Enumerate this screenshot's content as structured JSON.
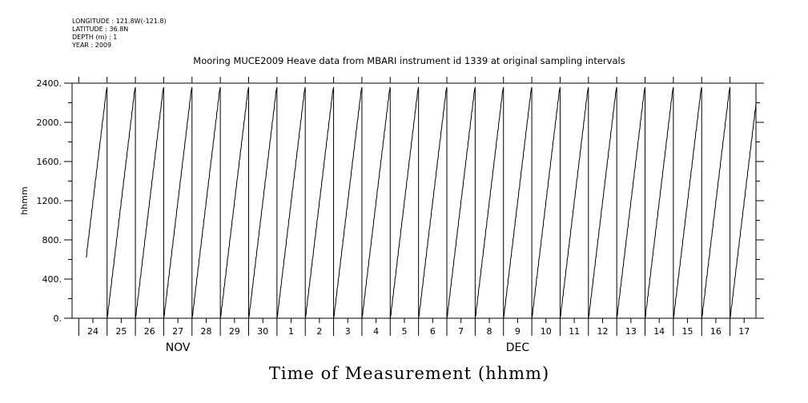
{
  "metadata": {
    "longitude": "LONGITUDE : 121.8W(-121.8)",
    "latitude": "LATITUDE : 36.8N",
    "depth": "DEPTH (m) : 1",
    "year": "YEAR : 2009"
  },
  "chart_data": {
    "type": "line",
    "title": "Mooring MUCE2009 Heave data from MBARI instrument id 1339 at original sampling intervals",
    "xlabel": "Time of Measurement (hhmm)",
    "ylabel": "hhmm",
    "ylim": [
      0,
      2400
    ],
    "yticks": [
      {
        "value": 0,
        "label": "0."
      },
      {
        "value": 400,
        "label": "400."
      },
      {
        "value": 800,
        "label": "800."
      },
      {
        "value": 1200,
        "label": "1200."
      },
      {
        "value": 1600,
        "label": "1600."
      },
      {
        "value": 2000,
        "label": "2000."
      },
      {
        "value": 2400,
        "label": "2400."
      }
    ],
    "xlim": [
      "2009-11-23T18:20",
      "2009-12-17T22:00"
    ],
    "x_day_labels": [
      {
        "date": "2009-11-24",
        "label": "24"
      },
      {
        "date": "2009-11-25",
        "label": "25"
      },
      {
        "date": "2009-11-26",
        "label": "26"
      },
      {
        "date": "2009-11-27",
        "label": "27"
      },
      {
        "date": "2009-11-28",
        "label": "28"
      },
      {
        "date": "2009-11-29",
        "label": "29"
      },
      {
        "date": "2009-11-30",
        "label": "30"
      },
      {
        "date": "2009-12-01",
        "label": "1"
      },
      {
        "date": "2009-12-02",
        "label": "2"
      },
      {
        "date": "2009-12-03",
        "label": "3"
      },
      {
        "date": "2009-12-04",
        "label": "4"
      },
      {
        "date": "2009-12-05",
        "label": "5"
      },
      {
        "date": "2009-12-06",
        "label": "6"
      },
      {
        "date": "2009-12-07",
        "label": "7"
      },
      {
        "date": "2009-12-08",
        "label": "8"
      },
      {
        "date": "2009-12-09",
        "label": "9"
      },
      {
        "date": "2009-12-10",
        "label": "10"
      },
      {
        "date": "2009-12-11",
        "label": "11"
      },
      {
        "date": "2009-12-12",
        "label": "12"
      },
      {
        "date": "2009-12-13",
        "label": "13"
      },
      {
        "date": "2009-12-14",
        "label": "14"
      },
      {
        "date": "2009-12-15",
        "label": "15"
      },
      {
        "date": "2009-12-16",
        "label": "16"
      },
      {
        "date": "2009-12-17",
        "label": "17"
      }
    ],
    "x_month_labels": [
      {
        "date": "2009-11-27",
        "label": "NOV"
      },
      {
        "date": "2009-12-09",
        "label": "DEC"
      }
    ],
    "series": [
      {
        "color": "#000000",
        "start": "2009-11-24T06:20",
        "end": "2009-12-17T23:00",
        "pattern": "value equals time of day in hhmm; resets to 0 at each midnight"
      }
    ],
    "grid": false
  }
}
